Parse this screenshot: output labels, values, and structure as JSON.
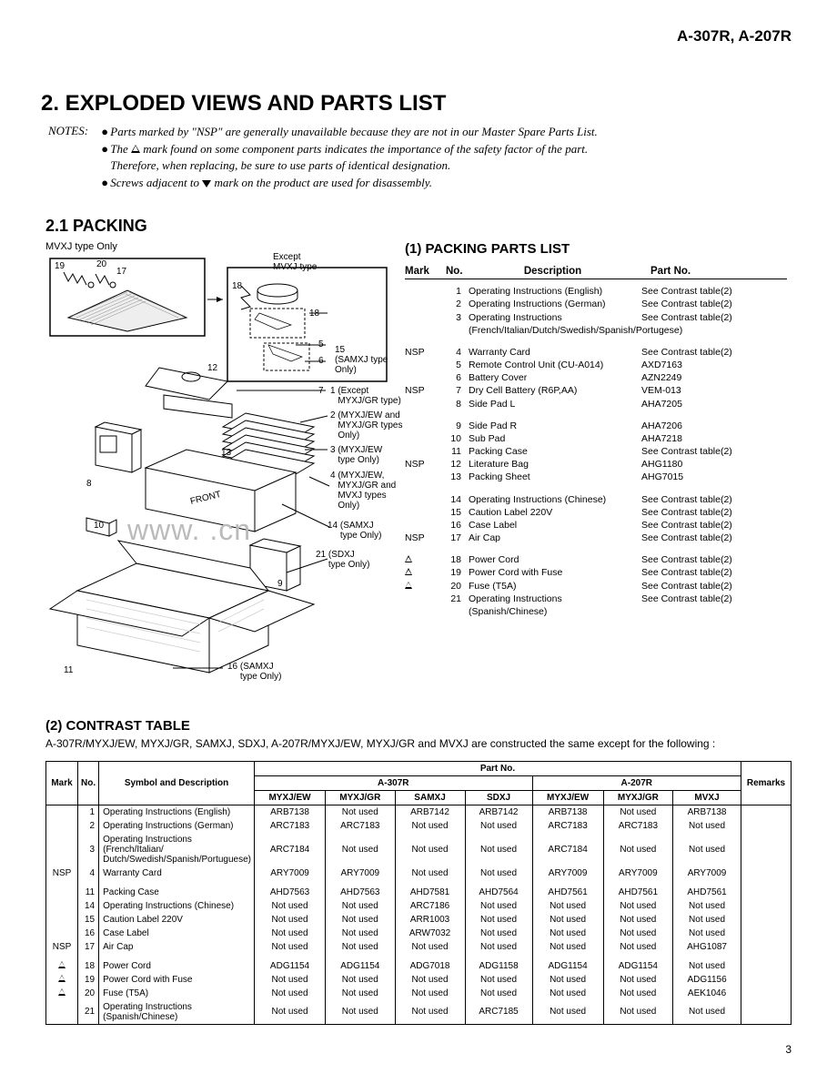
{
  "header": {
    "model_names": "A-307R, A-207R"
  },
  "main_title": "2. EXPLODED VIEWS AND PARTS LIST",
  "notes": {
    "label": "NOTES:",
    "l1": "Parts marked by \"NSP\" are generally unavailable because they are not in our Master Spare Parts List.",
    "l2a": "The ",
    "l2b": " mark found on some component parts indicates the importance of the safety factor of the part.",
    "l2c": "Therefore,  when replacing, be sure to use parts of identical designation.",
    "l3a": "Screws adjacent to ",
    "l3b": " mark on the product are used for disassembly."
  },
  "section_21": "2.1 PACKING",
  "diagram": {
    "mvxj_only": "MVXJ type Only",
    "except_mvxj": "Except\nMVXJ type",
    "samxj_only": "(SAMXJ type\nOnly)",
    "except_myxjgr": "(Except\nMYXJ/GR type)",
    "myxj_ew_gr": "(MYXJ/EW and\nMYXJ/GR types\nOnly)",
    "myxj_ew_only": "(MYXJ/EW\ntype Only)",
    "myxj_ew_gr_mvxj": "(MYXJ/EW,\nMYXJ/GR and\nMVXJ types\nOnly)",
    "sdxj_only": "(SDXJ\ntype Only)",
    "samxj_only2": "(SAMXJ\ntype Only)",
    "front": "FRONT",
    "watermark": "www.          .cn"
  },
  "parts_list": {
    "title": "(1) PACKING PARTS LIST",
    "hdr": {
      "mark": "Mark",
      "no": "No.",
      "desc": "Description",
      "part": "Part No."
    },
    "rows": [
      {
        "mark": "",
        "no": "1",
        "desc": "Operating Instructions (English)",
        "part": "See Contrast table(2)"
      },
      {
        "mark": "",
        "no": "2",
        "desc": "Operating Instructions (German)",
        "part": "See Contrast table(2)"
      },
      {
        "mark": "",
        "no": "3",
        "desc": "Operating Instructions",
        "part": "See Contrast table(2)",
        "sub": "(French/Italian/Dutch/Swedish/Spanish/Portugese)"
      },
      {
        "gap": true
      },
      {
        "mark": "NSP",
        "no": "4",
        "desc": "Warranty Card",
        "part": "See Contrast table(2)"
      },
      {
        "mark": "",
        "no": "5",
        "desc": "Remote Control Unit (CU-A014)",
        "part": "AXD7163"
      },
      {
        "mark": "",
        "no": "6",
        "desc": "Battery Cover",
        "part": "AZN2249"
      },
      {
        "mark": "NSP",
        "no": "7",
        "desc": "Dry Cell Battery (R6P,AA)",
        "part": "VEM-013"
      },
      {
        "mark": "",
        "no": "8",
        "desc": "Side Pad L",
        "part": "AHA7205"
      },
      {
        "gap": true
      },
      {
        "mark": "",
        "no": "9",
        "desc": "Side Pad R",
        "part": "AHA7206"
      },
      {
        "mark": "",
        "no": "10",
        "desc": "Sub Pad",
        "part": "AHA7218"
      },
      {
        "mark": "",
        "no": "11",
        "desc": "Packing Case",
        "part": "See Contrast table(2)"
      },
      {
        "mark": "NSP",
        "no": "12",
        "desc": "Literature Bag",
        "part": "AHG1180"
      },
      {
        "mark": "",
        "no": "13",
        "desc": "Packing Sheet",
        "part": "AHG7015"
      },
      {
        "gap": true
      },
      {
        "mark": "",
        "no": "14",
        "desc": "Operating Instructions (Chinese)",
        "part": "See Contrast table(2)"
      },
      {
        "mark": "",
        "no": "15",
        "desc": "Caution Label 220V",
        "part": "See Contrast table(2)"
      },
      {
        "mark": "",
        "no": "16",
        "desc": "Case Label",
        "part": "See Contrast table(2)"
      },
      {
        "mark": "NSP",
        "no": "17",
        "desc": "Air Cap",
        "part": "See Contrast table(2)"
      },
      {
        "gap": true
      },
      {
        "mark": "WARN",
        "no": "18",
        "desc": "Power Cord",
        "part": "See Contrast table(2)"
      },
      {
        "mark": "WARN",
        "no": "19",
        "desc": "Power Cord with Fuse",
        "part": "See Contrast table(2)"
      },
      {
        "mark": "WARN",
        "no": "20",
        "desc": "Fuse (T5A)",
        "part": "See Contrast table(2)"
      },
      {
        "mark": "",
        "no": "21",
        "desc": "Operating Instructions (Spanish/Chinese)",
        "part": "See Contrast table(2)"
      }
    ]
  },
  "contrast": {
    "title": "(2) CONTRAST TABLE",
    "intro": "A-307R/MYXJ/EW, MYXJ/GR, SAMXJ, SDXJ, A-207R/MYXJ/EW, MYXJ/GR and MVXJ are constructed the same except for the following :",
    "group1": "Part No.",
    "group_a307r": "A-307R",
    "group_a207r": "A-207R",
    "hdr": {
      "mark": "Mark",
      "no": "No.",
      "desc": "Symbol and Description",
      "c1": "MYXJ/EW",
      "c2": "MYXJ/GR",
      "c3": "SAMXJ",
      "c4": "SDXJ",
      "c5": "MYXJ/EW",
      "c6": "MYXJ/GR",
      "c7": "MVXJ",
      "rem": "Remarks"
    },
    "rows": [
      {
        "mark": "",
        "no": "1",
        "desc": "Operating Instructions (English)",
        "v": [
          "ARB7138",
          "Not used",
          "ARB7142",
          "ARB7142",
          "ARB7138",
          "Not used",
          "ARB7138"
        ],
        "rem": ""
      },
      {
        "mark": "",
        "no": "2",
        "desc": "Operating Instructions (German)",
        "v": [
          "ARC7183",
          "ARC7183",
          "Not used",
          "Not used",
          "ARC7183",
          "ARC7183",
          "Not used"
        ],
        "rem": ""
      },
      {
        "mark": "",
        "no": "3",
        "desc": "Operating Instructions (French/Italian/ Dutch/Swedish/Spanish/Portuguese)",
        "v": [
          "ARC7184",
          "Not used",
          "Not used",
          "Not used",
          "ARC7184",
          "Not used",
          "Not used"
        ],
        "rem": ""
      },
      {
        "mark": "NSP",
        "no": "4",
        "desc": "Warranty Card",
        "v": [
          "ARY7009",
          "ARY7009",
          "Not used",
          "Not used",
          "ARY7009",
          "ARY7009",
          "ARY7009"
        ],
        "rem": "",
        "group_end": true
      },
      {
        "mark": "",
        "no": "11",
        "desc": "Packing Case",
        "v": [
          "AHD7563",
          "AHD7563",
          "AHD7581",
          "AHD7564",
          "AHD7561",
          "AHD7561",
          "AHD7561"
        ],
        "rem": ""
      },
      {
        "mark": "",
        "no": "14",
        "desc": "Operating Instructions (Chinese)",
        "v": [
          "Not used",
          "Not used",
          "ARC7186",
          "Not used",
          "Not used",
          "Not used",
          "Not used"
        ],
        "rem": ""
      },
      {
        "mark": "",
        "no": "15",
        "desc": "Caution Label 220V",
        "v": [
          "Not used",
          "Not used",
          "ARR1003",
          "Not used",
          "Not used",
          "Not used",
          "Not used"
        ],
        "rem": ""
      },
      {
        "mark": "",
        "no": "16",
        "desc": "Case Label",
        "v": [
          "Not used",
          "Not used",
          "ARW7032",
          "Not used",
          "Not used",
          "Not used",
          "Not used"
        ],
        "rem": ""
      },
      {
        "mark": "NSP",
        "no": "17",
        "desc": "Air Cap",
        "v": [
          "Not used",
          "Not used",
          "Not used",
          "Not used",
          "Not used",
          "Not used",
          "AHG1087"
        ],
        "rem": "",
        "group_end": true
      },
      {
        "mark": "WARN",
        "no": "18",
        "desc": "Power Cord",
        "v": [
          "ADG1154",
          "ADG1154",
          "ADG7018",
          "ADG1158",
          "ADG1154",
          "ADG1154",
          "Not used"
        ],
        "rem": ""
      },
      {
        "mark": "WARN",
        "no": "19",
        "desc": "Power Cord with Fuse",
        "v": [
          "Not used",
          "Not used",
          "Not used",
          "Not used",
          "Not used",
          "Not used",
          "ADG1156"
        ],
        "rem": ""
      },
      {
        "mark": "WARN",
        "no": "20",
        "desc": "Fuse (T5A)",
        "v": [
          "Not used",
          "Not used",
          "Not used",
          "Not used",
          "Not used",
          "Not used",
          "AEK1046"
        ],
        "rem": ""
      },
      {
        "mark": "",
        "no": "21",
        "desc": "Operating Instructions   (Spanish/Chinese)",
        "v": [
          "Not used",
          "Not used",
          "Not used",
          "ARC7185",
          "Not used",
          "Not used",
          "Not used"
        ],
        "rem": "",
        "last": true
      }
    ]
  },
  "footer": {
    "page": "3"
  }
}
